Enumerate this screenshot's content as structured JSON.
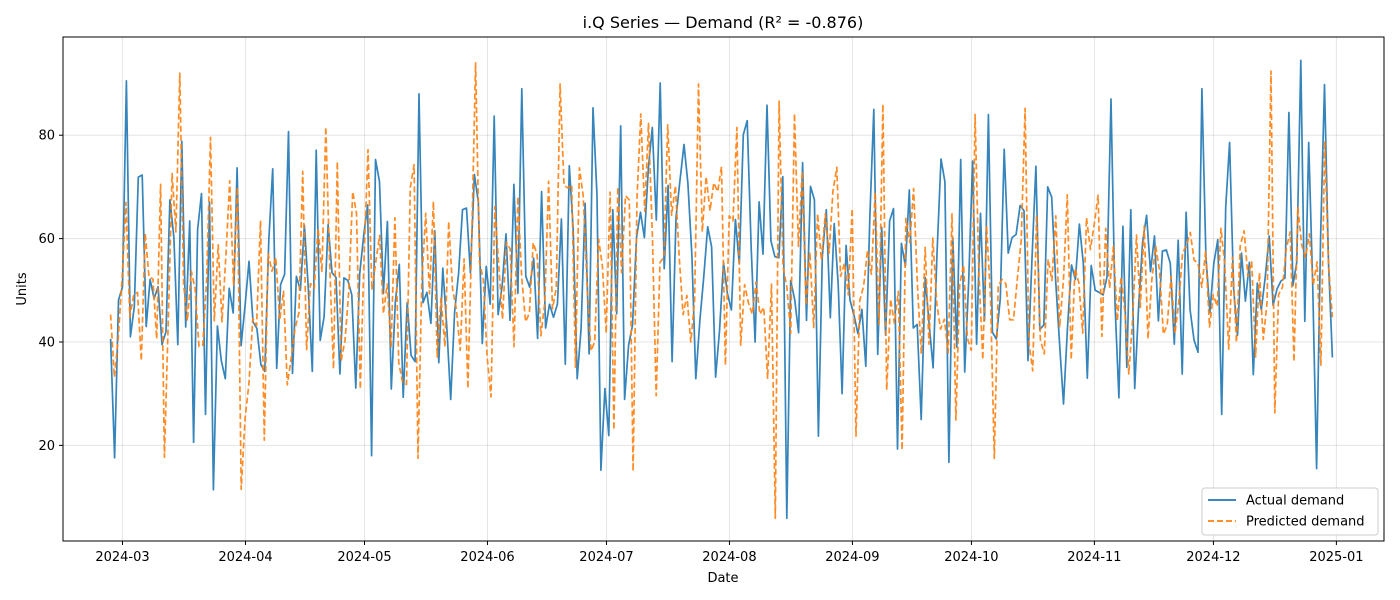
{
  "chart_data": {
    "type": "line",
    "title": "i.Q Series — Demand (R² = -0.876)",
    "xlabel": "Date",
    "ylabel": "Units",
    "x_start": "2024-02-27",
    "x_end": "2024-12-31",
    "x_ticks": [
      "2024-03",
      "2024-04",
      "2024-05",
      "2024-06",
      "2024-07",
      "2024-08",
      "2024-09",
      "2024-10",
      "2024-11",
      "2024-12",
      "2025-01"
    ],
    "y_ticks": [
      20,
      40,
      60,
      80
    ],
    "xlim": [
      "2024-02-15",
      "2025-01-13"
    ],
    "ylim": [
      1.5,
      99
    ],
    "grid": true,
    "legend_position": "lower-right",
    "series": [
      {
        "name": "Actual demand",
        "color": "#1f77b4",
        "style": "solid",
        "values": [
          40.6,
          17.6,
          48.1,
          50.7,
          90.5,
          41.0,
          46.8,
          71.9,
          72.3,
          43.0,
          52.1,
          48.4,
          50.7,
          39.5,
          42.0,
          67.5,
          60.2,
          39.5,
          78.8,
          42.9,
          63.4,
          20.6,
          61.7,
          68.7,
          26.0,
          67.1,
          11.4,
          43.1,
          36.4,
          32.9,
          50.4,
          45.6,
          73.7,
          39.3,
          46.9,
          55.6,
          43.9,
          42.6,
          35.6,
          34.3,
          59.7,
          73.5,
          34.9,
          51.1,
          53.1,
          80.7,
          33.9,
          52.7,
          50.0,
          62.6,
          50.4,
          34.3,
          77.1,
          40.3,
          44.9,
          62.7,
          53.4,
          52.5,
          33.8,
          52.4,
          51.9,
          49.1,
          31.1,
          53.2,
          60.6,
          66.5,
          18.0,
          75.3,
          71.0,
          49.4,
          63.3,
          30.9,
          47.6,
          55.0,
          29.3,
          47.6,
          37.4,
          36.2,
          88.0,
          47.6,
          49.6,
          43.6,
          61.5,
          36.0,
          54.3,
          43.2,
          28.9,
          45.8,
          53.3,
          65.6,
          65.9,
          53.4,
          72.4,
          67.1,
          39.7,
          54.6,
          47.3,
          83.7,
          45.3,
          50.8,
          60.9,
          44.2,
          70.5,
          49.4,
          89.0,
          52.7,
          50.6,
          56.2,
          40.7,
          69.1,
          42.7,
          47.3,
          44.8,
          47.3,
          63.8,
          35.7,
          74.1,
          61.7,
          32.9,
          42.6,
          66.8,
          37.7,
          85.3,
          68.3,
          15.2,
          31.0,
          21.9,
          65.6,
          45.5,
          81.8,
          28.9,
          39.4,
          43.2,
          60.2,
          65.1,
          60.2,
          73.7,
          81.5,
          63.6,
          90.1,
          54.2,
          70.3,
          36.2,
          64.0,
          71.3,
          78.2,
          70.7,
          56.7,
          32.9,
          44.0,
          52.5,
          62.3,
          58.4,
          33.2,
          42.1,
          55.4,
          49.4,
          46.2,
          63.7,
          55.1,
          80.1,
          82.8,
          58.1,
          40.0,
          67.1,
          57.0,
          85.8,
          59.6,
          56.5,
          56.3,
          72.0,
          5.9,
          51.9,
          48.2,
          41.8,
          74.7,
          44.2,
          70.1,
          67.5,
          21.8,
          56.5,
          65.6,
          44.7,
          62.9,
          51.1,
          30.0,
          58.7,
          48.1,
          45.2,
          41.6,
          46.3,
          35.3,
          63.9,
          85.0,
          37.6,
          62.2,
          41.3,
          63.4,
          65.8,
          19.3,
          59.1,
          54.7,
          69.4,
          42.7,
          43.4,
          25.0,
          52.5,
          43.6,
          35.0,
          57.1,
          75.4,
          71.0,
          16.7,
          60.2,
          39.0,
          75.3,
          34.2,
          51.3,
          75.0,
          39.6,
          64.9,
          44.1,
          84.0,
          41.9,
          40.6,
          48.4,
          77.3,
          57.2,
          60.2,
          60.8,
          66.4,
          65.4,
          36.4,
          55.7,
          74.0,
          42.4,
          43.3,
          70.0,
          68.0,
          52.1,
          39.6,
          28.0,
          42.8,
          54.9,
          52.1,
          62.8,
          55.2,
          33.0,
          54.8,
          50.0,
          49.6,
          49.1,
          52.6,
          87.0,
          47.4,
          29.2,
          62.4,
          35.1,
          65.6,
          31.0,
          47.2,
          59.3,
          64.5,
          53.6,
          60.5,
          44.1,
          57.6,
          57.8,
          55.2,
          39.6,
          59.7,
          33.8,
          65.1,
          46.2,
          40.4,
          38.0,
          89.0,
          56.6,
          45.7,
          55.2,
          59.8,
          26.0,
          66.0,
          78.6,
          50.4,
          41.3,
          57.2,
          47.9,
          55.4,
          33.7,
          51.4,
          46.2,
          52.5,
          60.5,
          47.1,
          50.3,
          51.8,
          52.4,
          84.4,
          50.9,
          55.5,
          94.5,
          44.0,
          78.6,
          51.1,
          15.5,
          60.3,
          89.8,
          55.3,
          37.0
        ]
      },
      {
        "name": "Predicted demand",
        "color": "#ff7f0e",
        "style": "dashed",
        "values": [
          45.3,
          33.2,
          40.9,
          52.3,
          67.0,
          44.8,
          49.1,
          49.6,
          36.4,
          61.0,
          52.6,
          52.2,
          40.6,
          70.5,
          17.7,
          43.6,
          72.6,
          61.3,
          92.0,
          51.1,
          44.1,
          53.7,
          50.3,
          39.1,
          39.4,
          52.2,
          79.6,
          44.1,
          58.8,
          43.9,
          56.7,
          71.2,
          50.9,
          69.9,
          11.5,
          25.3,
          31.9,
          44.5,
          43.2,
          63.5,
          21.0,
          57.1,
          53.7,
          56.4,
          44.2,
          49.8,
          31.7,
          36.9,
          42.6,
          45.6,
          73.0,
          38.5,
          51.3,
          50.4,
          62.0,
          53.5,
          81.6,
          55.5,
          34.8,
          74.9,
          36.3,
          40.3,
          49.8,
          69.1,
          64.9,
          30.9,
          57.1,
          77.2,
          50.1,
          55.4,
          60.6,
          45.5,
          51.2,
          39.1,
          64.0,
          35.9,
          32.2,
          31.8,
          69.9,
          74.3,
          17.5,
          51.5,
          64.9,
          49.3,
          67.2,
          37.1,
          48.5,
          39.1,
          63.3,
          50.2,
          46.3,
          38.4,
          56.1,
          31.0,
          60.6,
          94.0,
          55.5,
          52.1,
          37.2,
          29.4,
          66.2,
          55.0,
          44.4,
          59.3,
          58.0,
          39.1,
          68.1,
          52.5,
          43.9,
          45.6,
          59.2,
          56.9,
          41.2,
          47.7,
          71.1,
          46.4,
          50.5,
          89.9,
          70.3,
          69.8,
          70.4,
          35.1,
          73.7,
          68.3,
          51.5,
          38.3,
          40.0,
          59.9,
          54.7,
          41.7,
          69.0,
          23.0,
          70.0,
          53.4,
          68.3,
          67.5,
          15.0,
          67.8,
          84.1,
          65.3,
          82.3,
          60.5,
          29.6,
          55.4,
          56.4,
          82.0,
          64.5,
          70.2,
          56.2,
          45.3,
          49.0,
          40.0,
          48.0,
          89.9,
          61.3,
          72.0,
          65.4,
          70.8,
          69.1,
          73.9,
          35.5,
          64.4,
          63.4,
          81.5,
          39.4,
          51.1,
          47.6,
          45.4,
          51.6,
          45.4,
          46.7,
          33.0,
          51.2,
          5.9,
          86.6,
          54.7,
          50.7,
          41.7,
          84.2,
          58.5,
          73.0,
          47.1,
          57.4,
          42.8,
          64.8,
          55.8,
          64.8,
          57.2,
          69.1,
          73.8,
          52.7,
          55.2,
          49.1,
          65.8,
          21.8,
          48.0,
          50.9,
          57.8,
          53.1,
          69.0,
          43.4,
          86.0,
          30.7,
          48.3,
          43.6,
          49.8,
          19.1,
          63.9,
          59.2,
          69.7,
          50.7,
          37.7,
          58.3,
          39.6,
          60.1,
          47.6,
          42.5,
          44.4,
          37.9,
          64.8,
          24.9,
          51.2,
          54.9,
          40.7,
          38.4,
          84.0,
          53.3,
          36.6,
          62.5,
          48.6,
          17.5,
          50.9,
          52.1,
          51.3,
          44.3,
          44.3,
          52.3,
          59.6,
          85.2,
          40.0,
          34.4,
          64.5,
          40.4,
          37.7,
          56.0,
          51.9,
          64.4,
          42.8,
          52.1,
          68.5,
          36.6,
          54.2,
          51.5,
          41.7,
          64.0,
          57.9,
          62.7,
          68.4,
          41.1,
          62.0,
          50.4,
          58.5,
          44.1,
          52.6,
          45.8,
          33.8,
          44.4,
          60.7,
          46.7,
          62.4,
          40.6,
          52.0,
          58.5,
          53.9,
          41.5,
          43.3,
          52.7,
          41.6,
          47.6,
          57.3,
          58.6,
          61.2,
          55.8,
          55.3,
          50.6,
          57.5,
          42.9,
          49.1,
          46.9,
          62.0,
          54.8,
          38.6,
          56.4,
          39.9,
          58.6,
          61.5,
          52.7,
          55.5,
          37.1,
          53.4,
          40.5,
          47.8,
          92.4,
          26.3,
          49.2,
          50.6,
          58.1,
          61.3,
          36.2,
          66.0,
          58.8,
          56.4,
          60.9,
          51.0,
          55.5,
          35.5,
          78.9,
          54.6,
          44.8
        ]
      }
    ]
  }
}
